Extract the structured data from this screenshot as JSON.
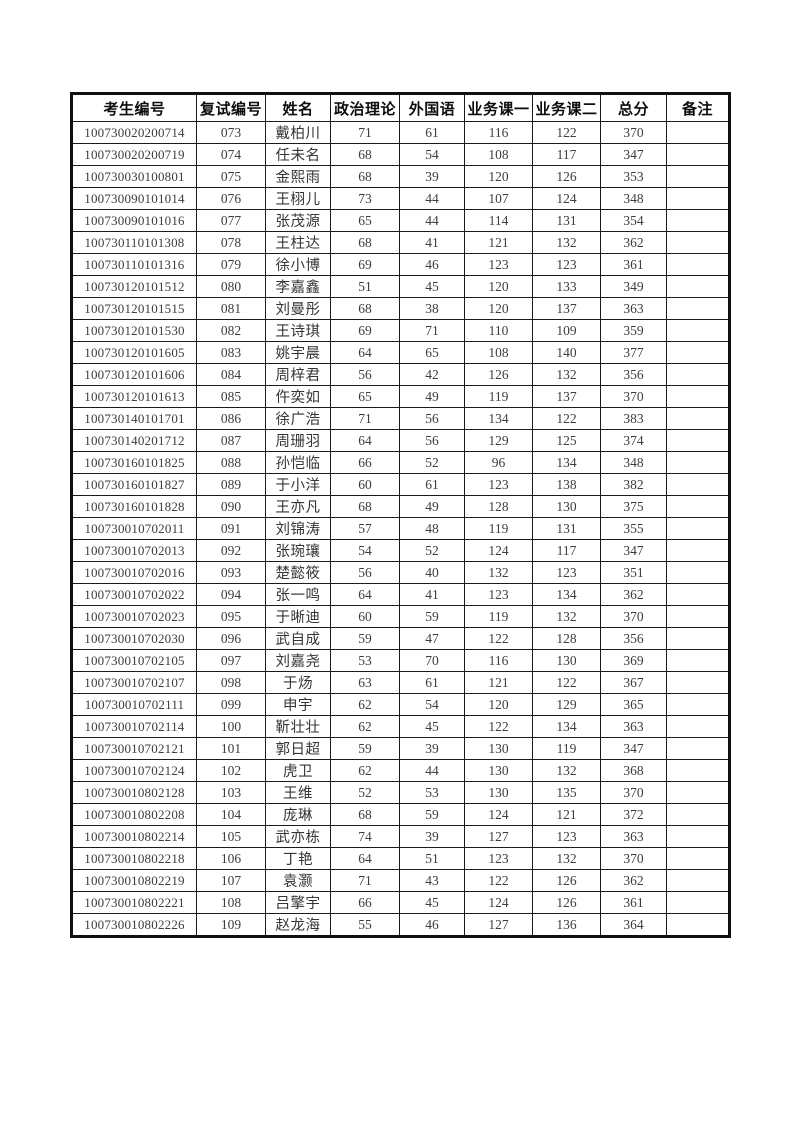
{
  "table": {
    "columns": [
      {
        "key": "candidate_no",
        "label": "考生编号"
      },
      {
        "key": "retest_no",
        "label": "复试编号"
      },
      {
        "key": "name",
        "label": "姓名"
      },
      {
        "key": "politics",
        "label": "政治理论"
      },
      {
        "key": "foreign_lang",
        "label": "外国语"
      },
      {
        "key": "course1",
        "label": "业务课一"
      },
      {
        "key": "course2",
        "label": "业务课二"
      },
      {
        "key": "total",
        "label": "总分"
      },
      {
        "key": "remark",
        "label": "备注"
      }
    ],
    "rows": [
      [
        "100730020200714",
        "073",
        "戴柏川",
        "71",
        "61",
        "116",
        "122",
        "370",
        ""
      ],
      [
        "100730020200719",
        "074",
        "任未名",
        "68",
        "54",
        "108",
        "117",
        "347",
        ""
      ],
      [
        "100730030100801",
        "075",
        "金熙雨",
        "68",
        "39",
        "120",
        "126",
        "353",
        ""
      ],
      [
        "100730090101014",
        "076",
        "王栩儿",
        "73",
        "44",
        "107",
        "124",
        "348",
        ""
      ],
      [
        "100730090101016",
        "077",
        "张茂源",
        "65",
        "44",
        "114",
        "131",
        "354",
        ""
      ],
      [
        "100730110101308",
        "078",
        "王柱达",
        "68",
        "41",
        "121",
        "132",
        "362",
        ""
      ],
      [
        "100730110101316",
        "079",
        "徐小博",
        "69",
        "46",
        "123",
        "123",
        "361",
        ""
      ],
      [
        "100730120101512",
        "080",
        "李嘉鑫",
        "51",
        "45",
        "120",
        "133",
        "349",
        ""
      ],
      [
        "100730120101515",
        "081",
        "刘曼彤",
        "68",
        "38",
        "120",
        "137",
        "363",
        ""
      ],
      [
        "100730120101530",
        "082",
        "王诗琪",
        "69",
        "71",
        "110",
        "109",
        "359",
        ""
      ],
      [
        "100730120101605",
        "083",
        "姚宇晨",
        "64",
        "65",
        "108",
        "140",
        "377",
        ""
      ],
      [
        "100730120101606",
        "084",
        "周梓君",
        "56",
        "42",
        "126",
        "132",
        "356",
        ""
      ],
      [
        "100730120101613",
        "085",
        "仵奕如",
        "65",
        "49",
        "119",
        "137",
        "370",
        ""
      ],
      [
        "100730140101701",
        "086",
        "徐广浩",
        "71",
        "56",
        "134",
        "122",
        "383",
        ""
      ],
      [
        "100730140201712",
        "087",
        "周珊羽",
        "64",
        "56",
        "129",
        "125",
        "374",
        ""
      ],
      [
        "100730160101825",
        "088",
        "孙恺临",
        "66",
        "52",
        "96",
        "134",
        "348",
        ""
      ],
      [
        "100730160101827",
        "089",
        "于小洋",
        "60",
        "61",
        "123",
        "138",
        "382",
        ""
      ],
      [
        "100730160101828",
        "090",
        "王亦凡",
        "68",
        "49",
        "128",
        "130",
        "375",
        ""
      ],
      [
        "100730010702011",
        "091",
        "刘锦涛",
        "57",
        "48",
        "119",
        "131",
        "355",
        ""
      ],
      [
        "100730010702013",
        "092",
        "张琬瓖",
        "54",
        "52",
        "124",
        "117",
        "347",
        ""
      ],
      [
        "100730010702016",
        "093",
        "楚懿筱",
        "56",
        "40",
        "132",
        "123",
        "351",
        ""
      ],
      [
        "100730010702022",
        "094",
        "张一鸣",
        "64",
        "41",
        "123",
        "134",
        "362",
        ""
      ],
      [
        "100730010702023",
        "095",
        "于晰迪",
        "60",
        "59",
        "119",
        "132",
        "370",
        ""
      ],
      [
        "100730010702030",
        "096",
        "武自成",
        "59",
        "47",
        "122",
        "128",
        "356",
        ""
      ],
      [
        "100730010702105",
        "097",
        "刘嘉尧",
        "53",
        "70",
        "116",
        "130",
        "369",
        ""
      ],
      [
        "100730010702107",
        "098",
        "于炀",
        "63",
        "61",
        "121",
        "122",
        "367",
        ""
      ],
      [
        "100730010702111",
        "099",
        "申宇",
        "62",
        "54",
        "120",
        "129",
        "365",
        ""
      ],
      [
        "100730010702114",
        "100",
        "靳壮壮",
        "62",
        "45",
        "122",
        "134",
        "363",
        ""
      ],
      [
        "100730010702121",
        "101",
        "郭日超",
        "59",
        "39",
        "130",
        "119",
        "347",
        ""
      ],
      [
        "100730010702124",
        "102",
        "虎卫",
        "62",
        "44",
        "130",
        "132",
        "368",
        ""
      ],
      [
        "100730010802128",
        "103",
        "王维",
        "52",
        "53",
        "130",
        "135",
        "370",
        ""
      ],
      [
        "100730010802208",
        "104",
        "庞琳",
        "68",
        "59",
        "124",
        "121",
        "372",
        ""
      ],
      [
        "100730010802214",
        "105",
        "武亦栋",
        "74",
        "39",
        "127",
        "123",
        "363",
        ""
      ],
      [
        "100730010802218",
        "106",
        "丁艳",
        "64",
        "51",
        "123",
        "132",
        "370",
        ""
      ],
      [
        "100730010802219",
        "107",
        "袁灏",
        "71",
        "43",
        "122",
        "126",
        "362",
        ""
      ],
      [
        "100730010802221",
        "108",
        "吕擎宇",
        "66",
        "45",
        "124",
        "126",
        "361",
        ""
      ],
      [
        "100730010802226",
        "109",
        "赵龙海",
        "55",
        "46",
        "127",
        "136",
        "364",
        ""
      ]
    ]
  }
}
